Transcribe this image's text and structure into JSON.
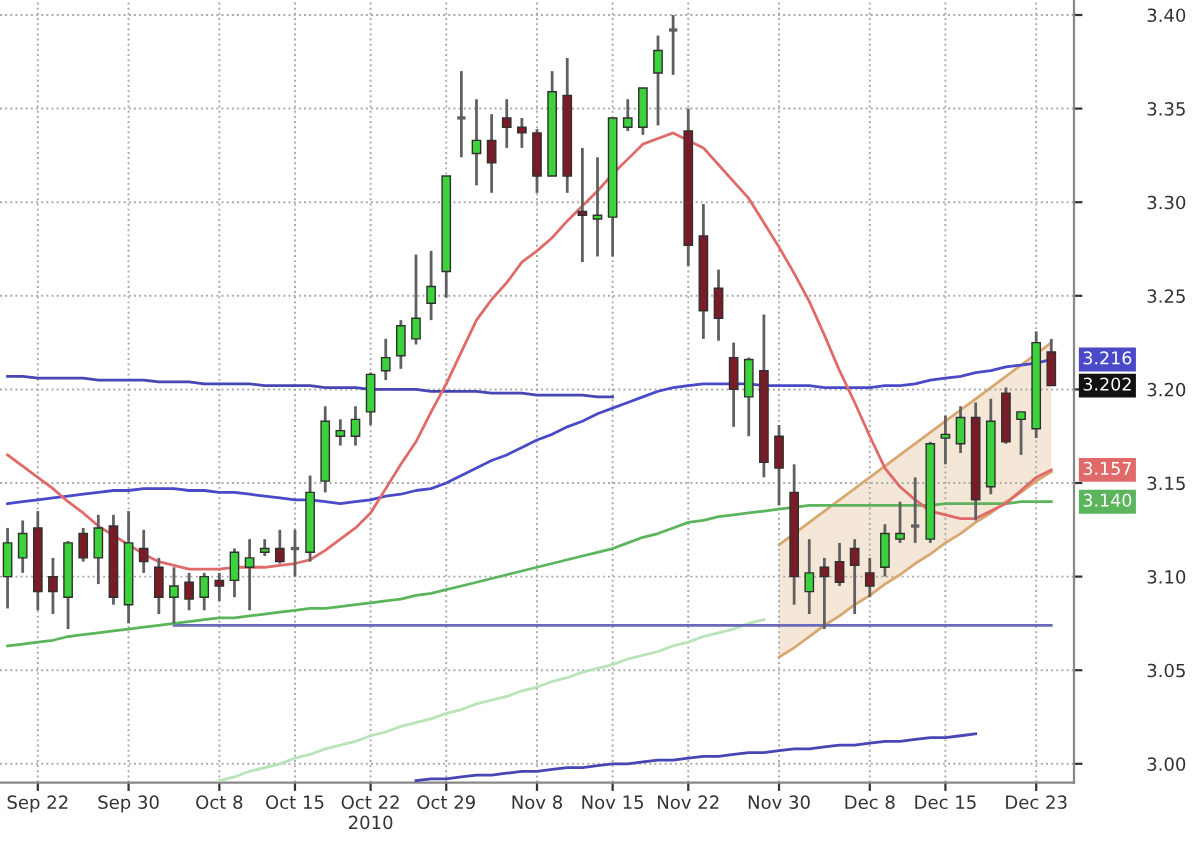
{
  "chart_data": {
    "type": "candlestick",
    "categories": [
      null,
      null,
      "Sep 22",
      null,
      null,
      null,
      null,
      null,
      "Sep 30",
      null,
      null,
      null,
      null,
      null,
      "Oct 8",
      null,
      null,
      null,
      null,
      "Oct 15",
      null,
      null,
      null,
      null,
      "Oct 22\n2010",
      null,
      null,
      null,
      null,
      "Oct 29",
      null,
      null,
      null,
      null,
      null,
      "Nov 8",
      null,
      null,
      null,
      null,
      "Nov 15",
      null,
      null,
      null,
      null,
      "Nov 22",
      null,
      null,
      null,
      null,
      null,
      "Nov 30",
      null,
      null,
      null,
      null,
      null,
      "Dec 8",
      null,
      null,
      null,
      null,
      "Dec 15",
      null,
      null,
      null,
      null,
      null,
      "Dec 23",
      null
    ],
    "ohlc": [
      [
        3.1,
        3.126,
        3.083,
        3.118
      ],
      [
        3.11,
        3.13,
        3.102,
        3.123
      ],
      [
        3.126,
        3.135,
        3.082,
        3.092
      ],
      [
        3.1,
        3.11,
        3.08,
        3.092
      ],
      [
        3.089,
        3.119,
        3.072,
        3.118
      ],
      [
        3.123,
        3.126,
        3.108,
        3.11
      ],
      [
        3.11,
        3.133,
        3.096,
        3.126
      ],
      [
        3.127,
        3.133,
        3.085,
        3.089
      ],
      [
        3.085,
        3.135,
        3.075,
        3.118
      ],
      [
        3.115,
        3.125,
        3.102,
        3.108
      ],
      [
        3.105,
        3.11,
        3.08,
        3.089
      ],
      [
        3.089,
        3.105,
        3.075,
        3.095
      ],
      [
        3.097,
        3.102,
        3.082,
        3.088
      ],
      [
        3.089,
        3.102,
        3.082,
        3.1
      ],
      [
        3.098,
        3.102,
        3.087,
        3.095
      ],
      [
        3.098,
        3.115,
        3.089,
        3.113
      ],
      [
        3.105,
        3.12,
        3.082,
        3.11
      ],
      [
        3.113,
        3.12,
        3.111,
        3.115
      ],
      [
        3.115,
        3.125,
        3.107,
        3.108
      ],
      [
        3.115,
        3.125,
        3.1,
        3.115
      ],
      [
        3.113,
        3.154,
        3.108,
        3.145
      ],
      [
        3.151,
        3.191,
        3.145,
        3.183
      ],
      [
        3.175,
        3.184,
        3.17,
        3.178
      ],
      [
        3.175,
        3.191,
        3.17,
        3.184
      ],
      [
        3.188,
        3.209,
        3.181,
        3.208
      ],
      [
        3.21,
        3.227,
        3.205,
        3.217
      ],
      [
        3.218,
        3.237,
        3.211,
        3.234
      ],
      [
        3.227,
        3.272,
        3.224,
        3.238
      ],
      [
        3.246,
        3.274,
        3.237,
        3.255
      ],
      [
        3.263,
        3.314,
        3.249,
        3.314
      ],
      [
        3.345,
        3.37,
        3.324,
        3.345
      ],
      [
        3.326,
        3.355,
        3.309,
        3.333
      ],
      [
        3.333,
        3.347,
        3.305,
        3.321
      ],
      [
        3.345,
        3.355,
        3.329,
        3.34
      ],
      [
        3.34,
        3.345,
        3.329,
        3.337
      ],
      [
        3.337,
        3.339,
        3.305,
        3.314
      ],
      [
        3.314,
        3.37,
        3.314,
        3.359
      ],
      [
        3.357,
        3.377,
        3.305,
        3.314
      ],
      [
        3.295,
        3.329,
        3.268,
        3.293
      ],
      [
        3.291,
        3.324,
        3.271,
        3.293
      ],
      [
        3.292,
        3.345,
        3.271,
        3.345
      ],
      [
        3.34,
        3.355,
        3.338,
        3.345
      ],
      [
        3.34,
        3.361,
        3.336,
        3.361
      ],
      [
        3.369,
        3.389,
        3.341,
        3.381
      ],
      [
        3.392,
        3.4,
        3.368,
        3.392
      ],
      [
        3.338,
        3.35,
        3.266,
        3.277
      ],
      [
        3.282,
        3.299,
        3.227,
        3.242
      ],
      [
        3.254,
        3.264,
        3.226,
        3.238
      ],
      [
        3.217,
        3.225,
        3.18,
        3.2
      ],
      [
        3.196,
        3.217,
        3.175,
        3.216
      ],
      [
        3.21,
        3.24,
        3.153,
        3.161
      ],
      [
        3.175,
        3.181,
        3.138,
        3.158
      ],
      [
        3.145,
        3.16,
        3.085,
        3.1
      ],
      [
        3.092,
        3.12,
        3.08,
        3.102
      ],
      [
        3.105,
        3.11,
        3.072,
        3.1
      ],
      [
        3.108,
        3.118,
        3.095,
        3.097
      ],
      [
        3.115,
        3.12,
        3.08,
        3.106
      ],
      [
        3.102,
        3.11,
        3.089,
        3.095
      ],
      [
        3.105,
        3.128,
        3.1,
        3.123
      ],
      [
        3.12,
        3.14,
        3.118,
        3.123
      ],
      [
        3.127,
        3.153,
        3.118,
        3.127
      ],
      [
        3.12,
        3.172,
        3.118,
        3.171
      ],
      [
        3.174,
        3.186,
        3.16,
        3.176
      ],
      [
        3.171,
        3.191,
        3.166,
        3.185
      ],
      [
        3.185,
        3.193,
        3.13,
        3.141
      ],
      [
        3.148,
        3.195,
        3.144,
        3.183
      ],
      [
        3.198,
        3.201,
        3.171,
        3.172
      ],
      [
        3.184,
        3.188,
        3.165,
        3.188
      ],
      [
        3.179,
        3.231,
        3.174,
        3.225
      ],
      [
        3.22,
        3.227,
        3.202,
        3.202
      ]
    ],
    "colors": [
      "#3cd23c",
      "#3cd23c",
      "#7a1c28",
      "#7a1c28",
      "#3cd23c",
      "#7a1c28",
      "#3cd23c",
      "#7a1c28",
      "#3cd23c",
      "#7a1c28",
      "#7a1c28",
      "#3cd23c",
      "#7a1c28",
      "#3cd23c",
      "#7a1c28",
      "#3cd23c",
      "#3cd23c",
      "#3cd23c",
      "#7a1c28",
      "#606060",
      "#3cd23c",
      "#3cd23c",
      "#3cd23c",
      "#3cd23c",
      "#3cd23c",
      "#3cd23c",
      "#3cd23c",
      "#3cd23c",
      "#3cd23c",
      "#3cd23c",
      "#606060",
      "#3cd23c",
      "#7a1c28",
      "#7a1c28",
      "#7a1c28",
      "#7a1c28",
      "#3cd23c",
      "#7a1c28",
      "#7a1c28",
      "#3cd23c",
      "#3cd23c",
      "#3cd23c",
      "#3cd23c",
      "#3cd23c",
      "#606060",
      "#7a1c28",
      "#7a1c28",
      "#7a1c28",
      "#7a1c28",
      "#3cd23c",
      "#7a1c28",
      "#7a1c28",
      "#7a1c28",
      "#3cd23c",
      "#7a1c28",
      "#7a1c28",
      "#7a1c28",
      "#7a1c28",
      "#3cd23c",
      "#3cd23c",
      "#606060",
      "#3cd23c",
      "#3cd23c",
      "#3cd23c",
      "#7a1c28",
      "#3cd23c",
      "#7a1c28",
      "#3cd23c",
      "#3cd23c",
      "#7a1c28"
    ],
    "value_labels": [
      null,
      null,
      null,
      null,
      null,
      null,
      null,
      null,
      null,
      null,
      null,
      null,
      null,
      null,
      null,
      null,
      null,
      null,
      null,
      null,
      null,
      null,
      null,
      null,
      null,
      null,
      null,
      null,
      null,
      null,
      null,
      null,
      null,
      null,
      null,
      null,
      null,
      null,
      null,
      null,
      null,
      null,
      null,
      null,
      null,
      null,
      null,
      null,
      null,
      null,
      null,
      null,
      null,
      null,
      null,
      null,
      null,
      null,
      null,
      null,
      null,
      null,
      null,
      null,
      null,
      null,
      null,
      null,
      null,
      "3.202"
    ],
    "series": [
      {
        "type": "line",
        "color": "#d9a870",
        "values": [
          null,
          null,
          null,
          null,
          null,
          null,
          null,
          null,
          null,
          null,
          null,
          null,
          null,
          null,
          null,
          null,
          null,
          null,
          null,
          null,
          null,
          null,
          null,
          null,
          null,
          null,
          null,
          null,
          null,
          null,
          null,
          null,
          null,
          null,
          null,
          null,
          null,
          null,
          null,
          null,
          null,
          null,
          null,
          null,
          null,
          null,
          null,
          null,
          null,
          null,
          null,
          3.057,
          3.062,
          3.068,
          3.074,
          3.079,
          3.085,
          3.09,
          3.096,
          3.101,
          3.107,
          3.112,
          3.118,
          3.123,
          3.129,
          3.134,
          3.14,
          3.145,
          3.151,
          3.156
        ]
      },
      {
        "type": "area",
        "color": "#d9a870",
        "values": [
          null,
          null,
          null,
          null,
          null,
          null,
          null,
          null,
          null,
          null,
          null,
          null,
          null,
          null,
          null,
          null,
          null,
          null,
          null,
          null,
          null,
          null,
          null,
          null,
          null,
          null,
          null,
          null,
          null,
          null,
          null,
          null,
          null,
          null,
          null,
          null,
          null,
          null,
          null,
          null,
          null,
          null,
          null,
          null,
          null,
          null,
          null,
          null,
          null,
          null,
          null,
          3.117,
          3.123,
          3.129,
          3.135,
          3.141,
          3.147,
          3.153,
          3.159,
          3.165,
          3.171,
          3.177,
          3.183,
          3.189,
          3.195,
          3.201,
          3.207,
          3.213,
          3.219,
          3.225
        ]
      },
      {
        "type": "line",
        "color": "#b8e4b8",
        "values": [
          null,
          null,
          null,
          null,
          null,
          null,
          null,
          null,
          null,
          null,
          null,
          null,
          null,
          null,
          2.991,
          2.993,
          2.996,
          2.998,
          3.0,
          3.003,
          3.005,
          3.008,
          3.01,
          3.012,
          3.015,
          3.017,
          3.02,
          3.022,
          3.024,
          3.027,
          3.029,
          3.032,
          3.034,
          3.036,
          3.039,
          3.041,
          3.044,
          3.046,
          3.049,
          3.051,
          3.053,
          3.056,
          3.058,
          3.06,
          3.063,
          3.065,
          3.068,
          3.07,
          3.072,
          3.075,
          3.077,
          null,
          null,
          null,
          null,
          null,
          null,
          null,
          null,
          null,
          null,
          null,
          null,
          null,
          null,
          null,
          null,
          null,
          null,
          null
        ]
      },
      {
        "type": "line",
        "color": "#6a6ab8",
        "values": [
          null,
          null,
          null,
          null,
          null,
          null,
          null,
          null,
          null,
          null,
          null,
          3.074,
          3.074,
          3.074,
          3.074,
          3.074,
          3.074,
          3.074,
          3.074,
          3.074,
          3.074,
          3.074,
          3.074,
          3.074,
          3.074,
          3.074,
          3.074,
          3.074,
          3.074,
          3.074,
          3.074,
          3.074,
          3.074,
          3.074,
          3.074,
          3.074,
          3.074,
          3.074,
          3.074,
          3.074,
          3.074,
          3.074,
          3.074,
          3.074,
          3.074,
          3.074,
          3.074,
          3.074,
          3.074,
          3.074,
          3.074,
          3.074,
          3.074,
          3.074,
          3.074,
          3.074,
          3.074,
          3.074,
          3.074,
          3.074,
          3.074,
          3.074,
          3.074,
          3.074,
          3.074,
          3.074,
          3.074,
          3.074,
          3.074,
          3.074
        ]
      },
      {
        "type": "line",
        "color": "#4646b4",
        "values": [
          3.207,
          3.207,
          3.206,
          3.206,
          3.206,
          3.206,
          3.205,
          3.205,
          3.205,
          3.205,
          3.204,
          3.204,
          3.204,
          3.203,
          3.203,
          3.203,
          3.203,
          3.202,
          3.202,
          3.202,
          3.202,
          3.201,
          3.201,
          3.201,
          3.2,
          3.2,
          3.2,
          3.2,
          3.199,
          3.199,
          3.199,
          3.199,
          3.198,
          3.198,
          3.198,
          3.197,
          3.197,
          3.197,
          3.197,
          3.196,
          3.196,
          null,
          null,
          null,
          null,
          null,
          null,
          null,
          null,
          null,
          null,
          null,
          null,
          null,
          null,
          null,
          null,
          null,
          null,
          null,
          null,
          null,
          null,
          null,
          null,
          null,
          null,
          null,
          null,
          null
        ]
      },
      {
        "type": "line",
        "color": "#4646b4",
        "values": [
          null,
          null,
          null,
          null,
          null,
          null,
          null,
          null,
          null,
          null,
          null,
          null,
          null,
          null,
          null,
          null,
          null,
          null,
          null,
          null,
          null,
          null,
          null,
          null,
          null,
          null,
          null,
          2.991,
          2.992,
          2.992,
          2.993,
          2.994,
          2.994,
          2.995,
          2.996,
          2.996,
          2.997,
          2.998,
          2.998,
          2.999,
          3.0,
          3.0,
          3.001,
          3.002,
          3.002,
          3.003,
          3.004,
          3.004,
          3.005,
          3.006,
          3.006,
          3.007,
          3.008,
          3.008,
          3.009,
          3.01,
          3.01,
          3.011,
          3.012,
          3.012,
          3.013,
          3.014,
          3.014,
          3.015,
          3.016,
          null,
          null,
          null,
          null,
          null
        ]
      },
      {
        "type": "line",
        "color": "#5cb45c",
        "values": [
          3.063,
          3.064,
          3.065,
          3.066,
          3.068,
          3.069,
          3.07,
          3.071,
          3.072,
          3.073,
          3.074,
          3.075,
          3.076,
          3.077,
          3.078,
          3.078,
          3.079,
          3.08,
          3.081,
          3.082,
          3.083,
          3.083,
          3.084,
          3.085,
          3.086,
          3.087,
          3.088,
          3.09,
          3.091,
          3.093,
          3.095,
          3.097,
          3.099,
          3.101,
          3.103,
          3.105,
          3.107,
          3.109,
          3.111,
          3.113,
          3.115,
          3.118,
          3.121,
          3.123,
          3.126,
          3.129,
          3.13,
          3.132,
          3.133,
          3.134,
          3.135,
          3.136,
          3.137,
          3.138,
          3.138,
          3.138,
          3.138,
          3.138,
          3.138,
          3.138,
          3.138,
          3.138,
          3.139,
          3.139,
          3.139,
          3.139,
          3.139,
          3.14,
          3.14,
          3.14
        ],
        "value_labels": [
          null,
          null,
          null,
          null,
          null,
          null,
          null,
          null,
          null,
          null,
          null,
          null,
          null,
          null,
          null,
          null,
          null,
          null,
          null,
          null,
          null,
          null,
          null,
          null,
          null,
          null,
          null,
          null,
          null,
          null,
          null,
          null,
          null,
          null,
          null,
          null,
          null,
          null,
          null,
          null,
          null,
          null,
          null,
          null,
          null,
          null,
          null,
          null,
          null,
          null,
          null,
          null,
          null,
          null,
          null,
          null,
          null,
          null,
          null,
          null,
          null,
          null,
          null,
          null,
          null,
          null,
          null,
          null,
          null,
          "3.140"
        ]
      },
      {
        "type": "line",
        "color": "#4a4ac8",
        "values": [
          3.139,
          3.14,
          3.141,
          3.142,
          3.143,
          3.144,
          3.145,
          3.146,
          3.146,
          3.147,
          3.147,
          3.147,
          3.146,
          3.146,
          3.145,
          3.145,
          3.144,
          3.143,
          3.142,
          3.141,
          3.141,
          3.14,
          3.139,
          3.14,
          3.141,
          3.143,
          3.144,
          3.146,
          3.147,
          3.15,
          3.154,
          3.158,
          3.162,
          3.165,
          3.169,
          3.173,
          3.176,
          3.18,
          3.183,
          3.187,
          3.19,
          3.193,
          3.196,
          3.199,
          3.201,
          3.202,
          3.203,
          3.203,
          3.203,
          3.203,
          3.202,
          3.202,
          3.202,
          3.202,
          3.201,
          3.201,
          3.201,
          3.201,
          3.202,
          3.202,
          3.203,
          3.205,
          3.206,
          3.207,
          3.209,
          3.21,
          3.212,
          3.213,
          3.214,
          3.216
        ],
        "value_labels": [
          null,
          null,
          null,
          null,
          null,
          null,
          null,
          null,
          null,
          null,
          null,
          null,
          null,
          null,
          null,
          null,
          null,
          null,
          null,
          null,
          null,
          null,
          null,
          null,
          null,
          null,
          null,
          null,
          null,
          null,
          null,
          null,
          null,
          null,
          null,
          null,
          null,
          null,
          null,
          null,
          null,
          null,
          null,
          null,
          null,
          null,
          null,
          null,
          null,
          null,
          null,
          null,
          null,
          null,
          null,
          null,
          null,
          null,
          null,
          null,
          null,
          null,
          null,
          null,
          null,
          null,
          null,
          null,
          null,
          "3.216"
        ]
      },
      {
        "type": "line",
        "color": "#e06a6a",
        "values": [
          3.165,
          3.159,
          3.153,
          3.147,
          3.14,
          3.134,
          3.127,
          3.122,
          3.117,
          3.112,
          3.108,
          3.106,
          3.104,
          3.104,
          3.104,
          3.105,
          3.105,
          3.105,
          3.106,
          3.107,
          3.109,
          3.114,
          3.12,
          3.126,
          3.134,
          3.147,
          3.16,
          3.172,
          3.188,
          3.203,
          3.22,
          3.237,
          3.248,
          3.257,
          3.268,
          3.274,
          3.281,
          3.29,
          3.298,
          3.306,
          3.315,
          3.323,
          3.331,
          3.334,
          3.337,
          3.333,
          3.329,
          3.32,
          3.311,
          3.302,
          3.289,
          3.276,
          3.262,
          3.247,
          3.229,
          3.21,
          3.193,
          3.175,
          3.158,
          3.148,
          3.141,
          3.135,
          3.133,
          3.131,
          3.131,
          3.135,
          3.139,
          3.146,
          3.153,
          3.157
        ],
        "value_labels": [
          null,
          null,
          null,
          null,
          null,
          null,
          null,
          null,
          null,
          null,
          null,
          null,
          null,
          null,
          null,
          null,
          null,
          null,
          null,
          null,
          null,
          null,
          null,
          null,
          null,
          null,
          null,
          null,
          null,
          null,
          null,
          null,
          null,
          null,
          null,
          null,
          null,
          null,
          null,
          null,
          null,
          null,
          null,
          null,
          null,
          null,
          null,
          null,
          null,
          null,
          null,
          null,
          null,
          null,
          null,
          null,
          null,
          null,
          null,
          null,
          null,
          null,
          null,
          null,
          null,
          null,
          null,
          null,
          null,
          "3.157"
        ]
      }
    ],
    "ylim": [
      2.99,
      3.408
    ],
    "yticks": [
      {
        "value": 3.0,
        "label": "3.00"
      },
      {
        "value": 3.05,
        "label": "3.05"
      },
      {
        "value": 3.1,
        "label": "3.10"
      },
      {
        "value": 3.15,
        "label": "3.15"
      },
      {
        "value": 3.2,
        "label": "3.20"
      },
      {
        "value": 3.25,
        "label": "3.25"
      },
      {
        "value": 3.3,
        "label": "3.30"
      },
      {
        "value": 3.35,
        "label": "3.35"
      },
      {
        "value": 3.4,
        "label": "3.40"
      }
    ],
    "grid": true
  }
}
